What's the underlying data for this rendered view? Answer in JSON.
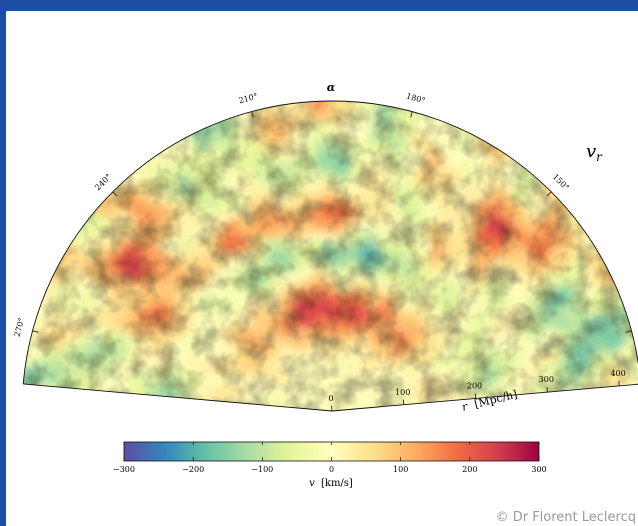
{
  "credit": "© Dr Florent Leclercq",
  "chart_data": {
    "type": "heatmap",
    "projection": "polar-wedge",
    "field_label": "v_r",
    "field_label_tex": "v",
    "field_label_sub": "r",
    "angle_axis": {
      "label": "α",
      "range_deg": [
        110,
        280
      ],
      "tick_labels": [
        "270°",
        "240°",
        "210°",
        "180°",
        "150°",
        "120°"
      ],
      "tick_values_deg": [
        270,
        240,
        210,
        180,
        150,
        120
      ]
    },
    "radial_axis": {
      "label": "r [Mpc/h]",
      "label_text": "r",
      "label_units": "[Mpc/h]",
      "tick_labels": [
        "0",
        "100",
        "200",
        "300",
        "400"
      ],
      "tick_values": [
        0,
        100,
        200,
        300,
        400
      ],
      "range": [
        0,
        430
      ]
    },
    "colorbar": {
      "label": "v [km/s]",
      "label_text": "v",
      "label_units": "[km/s]",
      "colormap": "Spectral_r",
      "range": [
        -300,
        300
      ],
      "tick_labels": [
        "−300",
        "−200",
        "−100",
        "0",
        "100",
        "200",
        "300"
      ],
      "tick_values": [
        -300,
        -200,
        -100,
        0,
        100,
        200,
        300
      ],
      "colors": [
        "#5e4fa2",
        "#3288bd",
        "#66c2a5",
        "#abdda4",
        "#e6f598",
        "#ffffbf",
        "#fee08b",
        "#fdae61",
        "#f46d43",
        "#d53e4f",
        "#9e0142"
      ]
    },
    "grid": false,
    "legend": "none"
  }
}
